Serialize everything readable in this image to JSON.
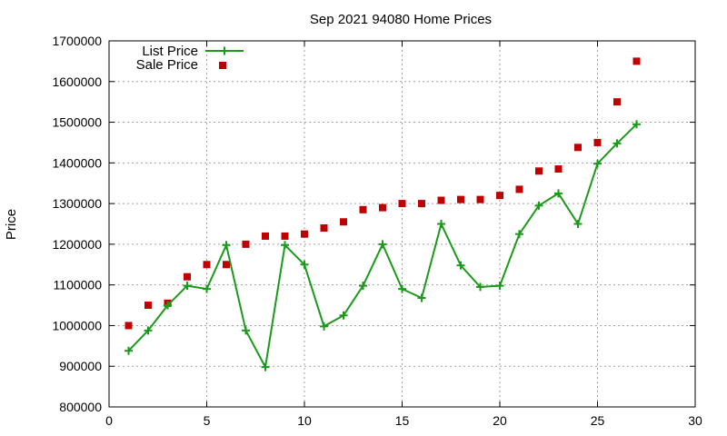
{
  "chart_data": {
    "type": "line",
    "title": "Sep 2021 94080 Home Prices",
    "xlabel": "",
    "ylabel": "Price",
    "xlim": [
      0,
      30
    ],
    "ylim": [
      800000,
      1700000
    ],
    "xticks": [
      0,
      5,
      10,
      15,
      20,
      25,
      30
    ],
    "yticks": [
      800000,
      900000,
      1000000,
      1100000,
      1200000,
      1300000,
      1400000,
      1500000,
      1600000,
      1700000
    ],
    "grid": true,
    "legend_position": "top-left",
    "series": [
      {
        "name": "List Price",
        "style": "line-plus",
        "color": "#1a9a1a",
        "x": [
          1,
          2,
          3,
          4,
          5,
          6,
          7,
          8,
          9,
          10,
          11,
          12,
          13,
          14,
          15,
          16,
          17,
          18,
          19,
          20,
          21,
          22,
          23,
          24,
          25,
          26,
          27
        ],
        "y": [
          938000,
          988000,
          1050000,
          1098000,
          1090000,
          1198000,
          988000,
          898000,
          1198000,
          1150000,
          998000,
          1025000,
          1098000,
          1200000,
          1090000,
          1068000,
          1250000,
          1148000,
          1095000,
          1098000,
          1225000,
          1295000,
          1325000,
          1250000,
          1398000,
          1448000,
          1495000
        ]
      },
      {
        "name": "Sale Price",
        "style": "square-markers",
        "color": "#c00000",
        "x": [
          1,
          2,
          3,
          4,
          5,
          6,
          7,
          8,
          9,
          10,
          11,
          12,
          13,
          14,
          15,
          16,
          17,
          18,
          19,
          20,
          21,
          22,
          23,
          24,
          25,
          26,
          27
        ],
        "y": [
          1000000,
          1050000,
          1055000,
          1120000,
          1150000,
          1150000,
          1200000,
          1220000,
          1220000,
          1225000,
          1240000,
          1255000,
          1285000,
          1290000,
          1300000,
          1300000,
          1308000,
          1310000,
          1310000,
          1320000,
          1335000,
          1380000,
          1385000,
          1438000,
          1450000,
          1550000,
          1650000
        ]
      }
    ]
  }
}
